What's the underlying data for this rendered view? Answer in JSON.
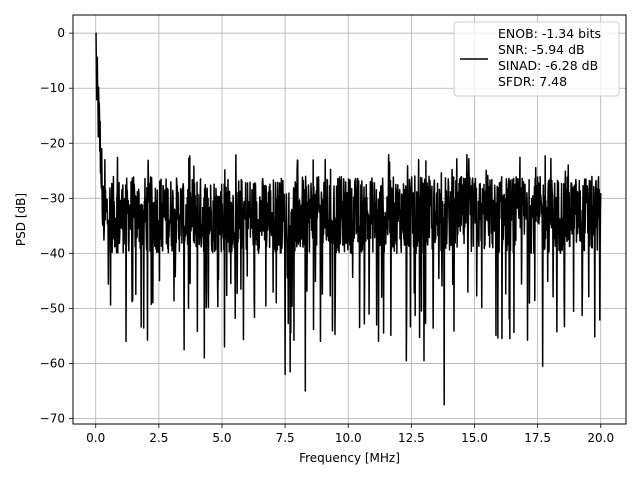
{
  "chart_data": {
    "type": "line",
    "xlabel": "Frequency [MHz]",
    "ylabel": "PSD [dB]",
    "xlim": [
      -0.9,
      21.0
    ],
    "ylim": [
      -71,
      3.3
    ],
    "xticks": [
      0.0,
      2.5,
      5.0,
      7.5,
      10.0,
      12.5,
      15.0,
      17.5,
      20.0
    ],
    "xtick_labels": [
      "0.0",
      "2.5",
      "5.0",
      "7.5",
      "10.0",
      "12.5",
      "15.0",
      "17.5",
      "20.0"
    ],
    "yticks": [
      0,
      -10,
      -20,
      -30,
      -40,
      -50,
      -60,
      -70
    ],
    "ytick_labels": [
      "0",
      "−10",
      "−20",
      "−30",
      "−40",
      "−50",
      "−60",
      "−70"
    ],
    "grid": true,
    "legend_position": "top-right",
    "legend_lines": [
      "ENOB: -1.34 bits",
      "SNR: -5.94 dB",
      "SINAD: -6.28 dB",
      "SFDR: 7.48"
    ],
    "series": [
      {
        "color": "#000000",
        "noise_floor_db": -33,
        "noise_band_db": [
          -40,
          -26
        ],
        "start_peak": {
          "x": 0.0,
          "y": 0.0
        },
        "notable_minima": [
          {
            "x": 1.2,
            "y": -56
          },
          {
            "x": 3.5,
            "y": -57.5
          },
          {
            "x": 4.3,
            "y": -59
          },
          {
            "x": 5.1,
            "y": -57
          },
          {
            "x": 7.5,
            "y": -62
          },
          {
            "x": 7.7,
            "y": -61.5
          },
          {
            "x": 8.3,
            "y": -65
          },
          {
            "x": 8.9,
            "y": -56
          },
          {
            "x": 11.2,
            "y": -56
          },
          {
            "x": 12.3,
            "y": -59.5
          },
          {
            "x": 13.0,
            "y": -59.5
          },
          {
            "x": 13.8,
            "y": -67.5
          },
          {
            "x": 17.7,
            "y": -60.5
          }
        ]
      }
    ]
  }
}
